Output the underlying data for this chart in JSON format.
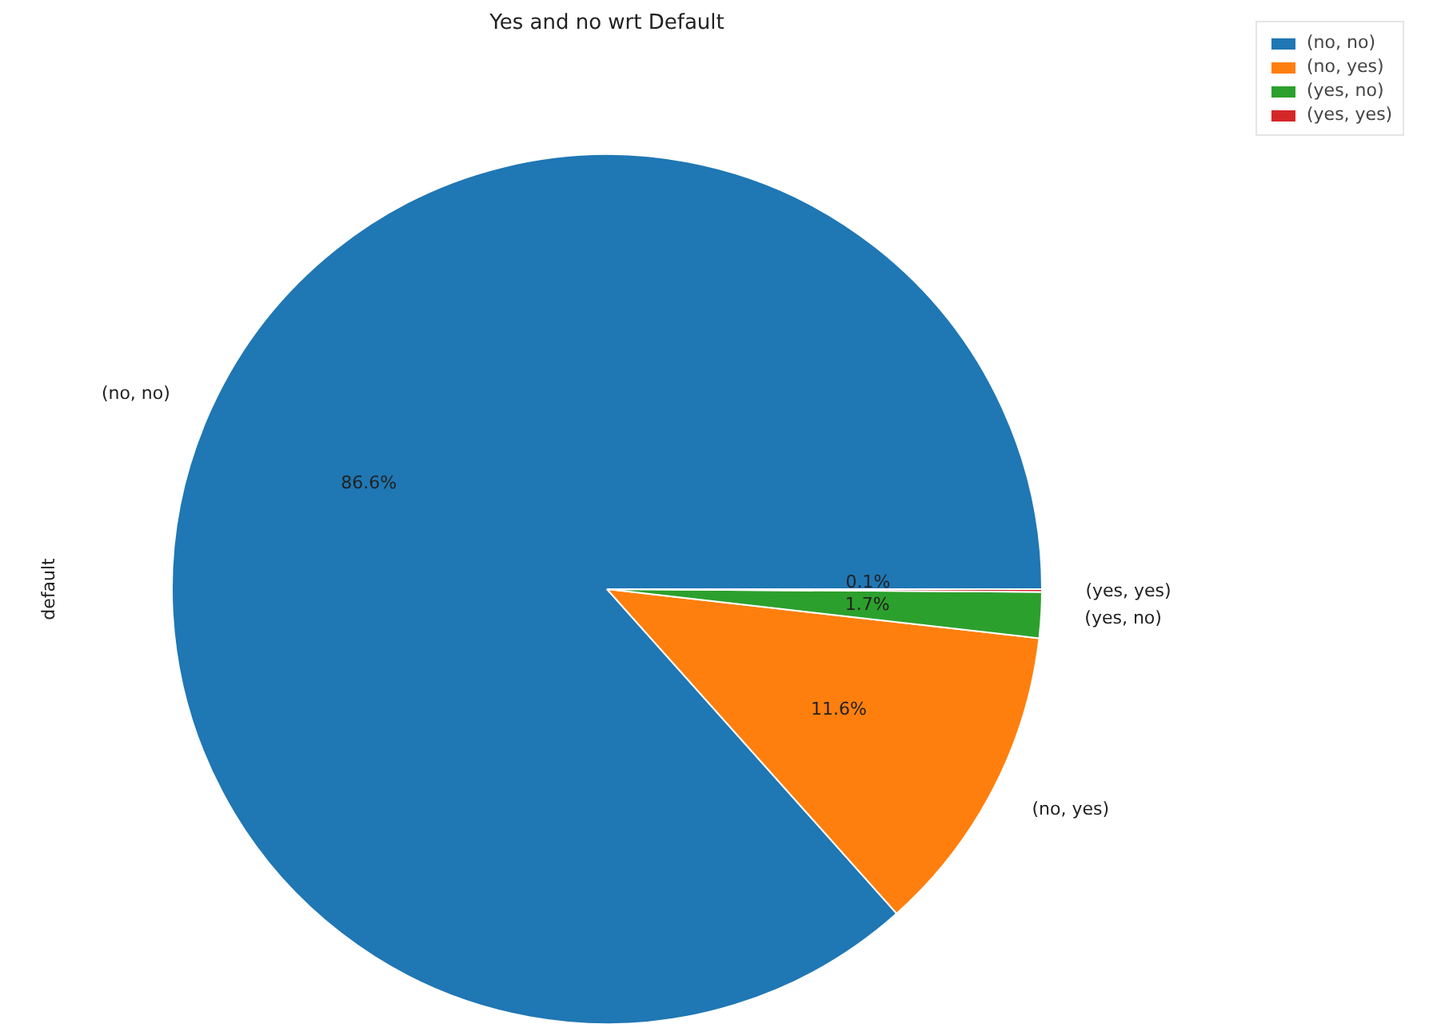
{
  "chart_data": {
    "type": "pie",
    "title": "Yes and no wrt Default",
    "ylabel": "default",
    "categories": [
      "(no, no)",
      "(no, yes)",
      "(yes, no)",
      "(yes, yes)"
    ],
    "values": [
      86.6,
      11.6,
      1.7,
      0.1
    ],
    "colors": [
      "#1f77b4",
      "#ff7f0e",
      "#2ca02c",
      "#d62728"
    ],
    "value_labels": [
      "86.6%",
      "11.6%",
      "1.7%",
      "0.1%"
    ],
    "legend": "top right"
  }
}
